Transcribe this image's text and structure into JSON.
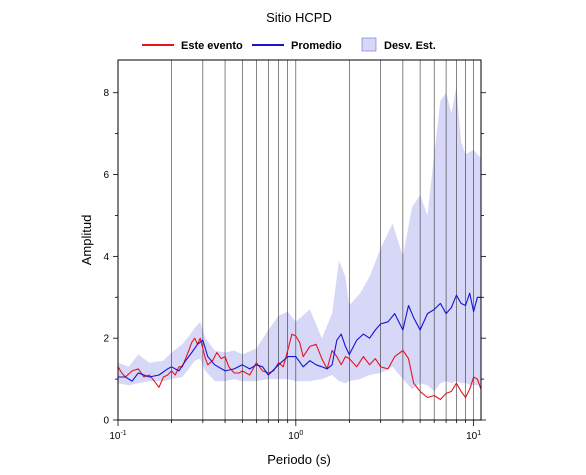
{
  "chart_data": {
    "type": "line",
    "title": "Sitio HCPD",
    "xlabel": "Periodo (s)",
    "ylabel": "Amplitud",
    "xscale": "log",
    "xlim": [
      0.1,
      11
    ],
    "ylim": [
      0,
      8.8
    ],
    "grid": "vertical log grid",
    "legend_position": "top",
    "x_ticks": [
      {
        "value": 0.1,
        "base": "10",
        "exp": "-1"
      },
      {
        "value": 1,
        "base": "10",
        "exp": "0"
      },
      {
        "value": 10,
        "base": "10",
        "exp": "1"
      }
    ],
    "y_ticks": [
      0,
      2,
      4,
      6,
      8
    ],
    "legend": [
      {
        "label": "Este evento",
        "kind": "line",
        "color": "#e8141e"
      },
      {
        "label": "Promedio",
        "kind": "line",
        "color": "#1414d2"
      },
      {
        "label": "Desv. Est.",
        "kind": "band",
        "color": "#d7d7f8"
      }
    ],
    "band": {
      "name": "Desv. Est.",
      "color": "#d7d7f8",
      "x": [
        0.1,
        0.115,
        0.13,
        0.15,
        0.18,
        0.2,
        0.23,
        0.25,
        0.27,
        0.29,
        0.31,
        0.35,
        0.4,
        0.45,
        0.5,
        0.6,
        0.7,
        0.8,
        0.9,
        1.0,
        1.2,
        1.4,
        1.6,
        1.75,
        1.9,
        2.0,
        2.3,
        2.6,
        3.0,
        3.5,
        4.0,
        4.5,
        5.0,
        5.5,
        6.0,
        6.5,
        7.0,
        7.5,
        8.0,
        8.5,
        9.0,
        10.0,
        11.0
      ],
      "upper": [
        1.4,
        1.3,
        1.6,
        1.4,
        1.45,
        1.65,
        1.85,
        2.05,
        2.25,
        2.4,
        2.0,
        1.7,
        1.65,
        1.7,
        1.6,
        1.75,
        2.2,
        2.55,
        2.65,
        2.4,
        2.7,
        2.0,
        2.6,
        3.9,
        3.5,
        2.8,
        3.1,
        3.5,
        4.2,
        4.8,
        4.0,
        5.2,
        5.5,
        5.0,
        6.5,
        7.8,
        8.0,
        7.5,
        8.15,
        6.8,
        6.5,
        6.6,
        6.4
      ],
      "lower": [
        0.9,
        0.85,
        0.9,
        0.95,
        0.95,
        1.0,
        1.05,
        1.25,
        1.45,
        1.5,
        1.2,
        0.95,
        0.95,
        1.0,
        0.95,
        0.95,
        1.0,
        1.0,
        1.0,
        0.95,
        0.95,
        1.0,
        1.1,
        0.95,
        0.9,
        0.95,
        1.0,
        1.1,
        1.15,
        1.3,
        1.0,
        0.75,
        0.9,
        0.85,
        0.7,
        0.9,
        0.95,
        0.9,
        0.95,
        0.9,
        0.9,
        0.85,
        0.85
      ]
    },
    "series": [
      {
        "name": "Este evento",
        "color": "#e8141e",
        "x": [
          0.1,
          0.105,
          0.11,
          0.12,
          0.13,
          0.14,
          0.15,
          0.16,
          0.17,
          0.18,
          0.19,
          0.2,
          0.21,
          0.22,
          0.23,
          0.24,
          0.25,
          0.26,
          0.27,
          0.28,
          0.29,
          0.3,
          0.31,
          0.32,
          0.34,
          0.36,
          0.38,
          0.4,
          0.42,
          0.45,
          0.48,
          0.5,
          0.55,
          0.6,
          0.65,
          0.7,
          0.75,
          0.8,
          0.85,
          0.9,
          0.95,
          1.0,
          1.05,
          1.1,
          1.2,
          1.3,
          1.4,
          1.5,
          1.6,
          1.7,
          1.8,
          1.9,
          2.0,
          2.2,
          2.4,
          2.6,
          2.8,
          3.0,
          3.3,
          3.6,
          4.0,
          4.3,
          4.6,
          5.0,
          5.5,
          6.0,
          6.5,
          7.0,
          7.5,
          8.0,
          8.5,
          9.0,
          9.5,
          10.0,
          10.5,
          11.0
        ],
        "y": [
          1.3,
          1.15,
          1.05,
          1.2,
          1.25,
          1.05,
          1.1,
          0.95,
          0.8,
          1.05,
          1.1,
          1.2,
          1.1,
          1.3,
          1.3,
          1.5,
          1.7,
          1.9,
          2.0,
          1.85,
          2.0,
          1.75,
          1.5,
          1.35,
          1.45,
          1.65,
          1.5,
          1.55,
          1.3,
          1.15,
          1.15,
          1.2,
          1.1,
          1.4,
          1.2,
          1.15,
          1.2,
          1.4,
          1.3,
          1.7,
          2.1,
          2.05,
          1.9,
          1.55,
          1.8,
          1.85,
          1.5,
          1.25,
          1.7,
          1.55,
          1.35,
          1.55,
          1.5,
          1.3,
          1.55,
          1.35,
          1.5,
          1.3,
          1.25,
          1.55,
          1.7,
          1.5,
          0.9,
          0.7,
          0.55,
          0.6,
          0.5,
          0.65,
          0.7,
          0.9,
          0.7,
          0.55,
          0.75,
          1.05,
          1.0,
          0.75
        ]
      },
      {
        "name": "Promedio",
        "color": "#1414d2",
        "x": [
          0.1,
          0.11,
          0.12,
          0.13,
          0.14,
          0.15,
          0.17,
          0.19,
          0.2,
          0.22,
          0.24,
          0.26,
          0.28,
          0.3,
          0.32,
          0.35,
          0.4,
          0.45,
          0.5,
          0.55,
          0.6,
          0.65,
          0.7,
          0.8,
          0.9,
          1.0,
          1.1,
          1.2,
          1.3,
          1.4,
          1.5,
          1.6,
          1.7,
          1.8,
          1.9,
          2.0,
          2.2,
          2.4,
          2.6,
          2.8,
          3.0,
          3.3,
          3.6,
          4.0,
          4.3,
          4.6,
          5.0,
          5.5,
          6.0,
          6.5,
          7.0,
          7.5,
          8.0,
          8.5,
          9.0,
          9.5,
          10.0,
          10.5,
          11.0
        ],
        "y": [
          1.05,
          1.05,
          0.95,
          1.15,
          1.1,
          1.05,
          1.1,
          1.25,
          1.3,
          1.2,
          1.45,
          1.65,
          1.85,
          1.95,
          1.55,
          1.35,
          1.2,
          1.25,
          1.35,
          1.25,
          1.35,
          1.3,
          1.1,
          1.35,
          1.55,
          1.55,
          1.3,
          1.45,
          1.35,
          1.3,
          1.25,
          1.35,
          1.95,
          2.1,
          1.8,
          1.6,
          1.95,
          2.1,
          2.0,
          2.2,
          2.35,
          2.4,
          2.6,
          2.2,
          2.8,
          2.5,
          2.2,
          2.6,
          2.7,
          2.85,
          2.6,
          2.75,
          3.05,
          2.85,
          2.8,
          3.1,
          2.65,
          3.0,
          3.0
        ]
      }
    ]
  }
}
